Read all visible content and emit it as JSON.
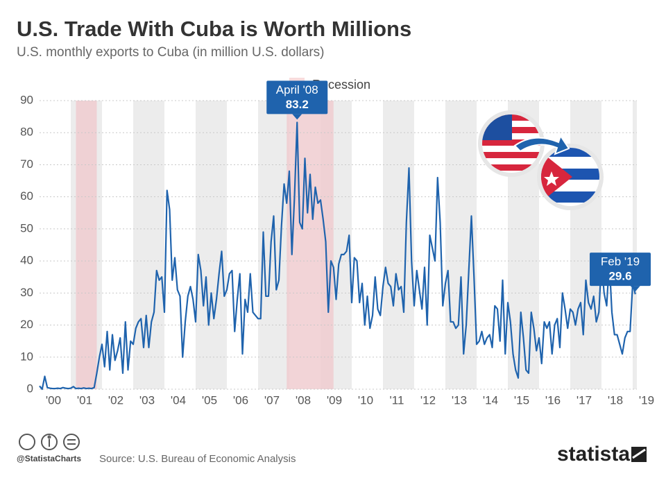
{
  "chart_data": {
    "type": "line",
    "title": "U.S. Trade With Cuba is Worth Millions",
    "subtitle": "U.S. monthly exports to Cuba (in million U.S. dollars)",
    "x": [
      "2000-01",
      "2000-02",
      "2000-03",
      "2000-04",
      "2000-05",
      "2000-06",
      "2000-07",
      "2000-08",
      "2000-09",
      "2000-10",
      "2000-11",
      "2000-12",
      "2001-01",
      "2001-02",
      "2001-03",
      "2001-04",
      "2001-05",
      "2001-06",
      "2001-07",
      "2001-08",
      "2001-09",
      "2001-10",
      "2001-11",
      "2001-12",
      "2002-01",
      "2002-02",
      "2002-03",
      "2002-04",
      "2002-05",
      "2002-06",
      "2002-07",
      "2002-08",
      "2002-09",
      "2002-10",
      "2002-11",
      "2002-12",
      "2003-01",
      "2003-02",
      "2003-03",
      "2003-04",
      "2003-05",
      "2003-06",
      "2003-07",
      "2003-08",
      "2003-09",
      "2003-10",
      "2003-11",
      "2003-12",
      "2004-01",
      "2004-02",
      "2004-03",
      "2004-04",
      "2004-05",
      "2004-06",
      "2004-07",
      "2004-08",
      "2004-09",
      "2004-10",
      "2004-11",
      "2004-12",
      "2005-01",
      "2005-02",
      "2005-03",
      "2005-04",
      "2005-05",
      "2005-06",
      "2005-07",
      "2005-08",
      "2005-09",
      "2005-10",
      "2005-11",
      "2005-12",
      "2006-01",
      "2006-02",
      "2006-03",
      "2006-04",
      "2006-05",
      "2006-06",
      "2006-07",
      "2006-08",
      "2006-09",
      "2006-10",
      "2006-11",
      "2006-12",
      "2007-01",
      "2007-02",
      "2007-03",
      "2007-04",
      "2007-05",
      "2007-06",
      "2007-07",
      "2007-08",
      "2007-09",
      "2007-10",
      "2007-11",
      "2007-12",
      "2008-01",
      "2008-02",
      "2008-03",
      "2008-04",
      "2008-05",
      "2008-06",
      "2008-07",
      "2008-08",
      "2008-09",
      "2008-10",
      "2008-11",
      "2008-12",
      "2009-01",
      "2009-02",
      "2009-03",
      "2009-04",
      "2009-05",
      "2009-06",
      "2009-07",
      "2009-08",
      "2009-09",
      "2009-10",
      "2009-11",
      "2009-12",
      "2010-01",
      "2010-02",
      "2010-03",
      "2010-04",
      "2010-05",
      "2010-06",
      "2010-07",
      "2010-08",
      "2010-09",
      "2010-10",
      "2010-11",
      "2010-12",
      "2011-01",
      "2011-02",
      "2011-03",
      "2011-04",
      "2011-05",
      "2011-06",
      "2011-07",
      "2011-08",
      "2011-09",
      "2011-10",
      "2011-11",
      "2011-12",
      "2012-01",
      "2012-02",
      "2012-03",
      "2012-04",
      "2012-05",
      "2012-06",
      "2012-07",
      "2012-08",
      "2012-09",
      "2012-10",
      "2012-11",
      "2012-12",
      "2013-01",
      "2013-02",
      "2013-03",
      "2013-04",
      "2013-05",
      "2013-06",
      "2013-07",
      "2013-08",
      "2013-09",
      "2013-10",
      "2013-11",
      "2013-12",
      "2014-01",
      "2014-02",
      "2014-03",
      "2014-04",
      "2014-05",
      "2014-06",
      "2014-07",
      "2014-08",
      "2014-09",
      "2014-10",
      "2014-11",
      "2014-12",
      "2015-01",
      "2015-02",
      "2015-03",
      "2015-04",
      "2015-05",
      "2015-06",
      "2015-07",
      "2015-08",
      "2015-09",
      "2015-10",
      "2015-11",
      "2015-12",
      "2016-01",
      "2016-02",
      "2016-03",
      "2016-04",
      "2016-05",
      "2016-06",
      "2016-07",
      "2016-08",
      "2016-09",
      "2016-10",
      "2016-11",
      "2016-12",
      "2017-01",
      "2017-02",
      "2017-03",
      "2017-04",
      "2017-05",
      "2017-06",
      "2017-07",
      "2017-08",
      "2017-09",
      "2017-10",
      "2017-11",
      "2017-12",
      "2018-01",
      "2018-02",
      "2018-03",
      "2018-04",
      "2018-05",
      "2018-06",
      "2018-07",
      "2018-08",
      "2018-09",
      "2018-10",
      "2018-11",
      "2018-12",
      "2019-01",
      "2019-02"
    ],
    "series": [
      {
        "name": "U.S. exports to Cuba",
        "color": "#1f63ad",
        "values": [
          1,
          0,
          4,
          0.5,
          0.3,
          0.2,
          0.2,
          0.3,
          0.2,
          0.5,
          0.3,
          0.2,
          0.3,
          0.8,
          0.2,
          0.3,
          0.2,
          0.4,
          0.2,
          0.3,
          0.2,
          0.5,
          5,
          10,
          14,
          7,
          18,
          6,
          17,
          9,
          12,
          16,
          5,
          21,
          6,
          15,
          14,
          19,
          21,
          22,
          13,
          23,
          13,
          21,
          24,
          37,
          34,
          35,
          24,
          62,
          56,
          34,
          41,
          31,
          29,
          10,
          21,
          29,
          32,
          28,
          21,
          42,
          37,
          26,
          35,
          20,
          30,
          22,
          28,
          36,
          43,
          29,
          31,
          36,
          37,
          18,
          28,
          36,
          11,
          28,
          24,
          36,
          24,
          23,
          22,
          22,
          49,
          29,
          29,
          46,
          54,
          31,
          34,
          51,
          64,
          58,
          68,
          42,
          60,
          83.2,
          52,
          50,
          72,
          55,
          67,
          53,
          63,
          58,
          59,
          53,
          46,
          24,
          40,
          38,
          28,
          39,
          42,
          42,
          43,
          48,
          27,
          41,
          40,
          27,
          33,
          20,
          29,
          19,
          23,
          35,
          25,
          23,
          32,
          38,
          33,
          32,
          26,
          36,
          31,
          32,
          24,
          52,
          69,
          40,
          26,
          37,
          31,
          25,
          38,
          20,
          48,
          44,
          40,
          66,
          52,
          26,
          33,
          37,
          21,
          21,
          19,
          20,
          35,
          11,
          20,
          37,
          54,
          35,
          14,
          15,
          18,
          14,
          16,
          17,
          13,
          26,
          25,
          15,
          34,
          11,
          27,
          21,
          11,
          6,
          3.5,
          24,
          16,
          6,
          5,
          24,
          19,
          12,
          16,
          8,
          21,
          19,
          21,
          11,
          20,
          22,
          13,
          30,
          25,
          19,
          25,
          24,
          20,
          25,
          27,
          17,
          34,
          27,
          25,
          29,
          21,
          24,
          40,
          30,
          26,
          40,
          24,
          17,
          17,
          14,
          11,
          16,
          18,
          18,
          33,
          29.6
        ]
      }
    ],
    "xticks": [
      {
        "value": 2000,
        "label": "'00"
      },
      {
        "value": 2001,
        "label": "'01"
      },
      {
        "value": 2002,
        "label": "'02"
      },
      {
        "value": 2003,
        "label": "'03"
      },
      {
        "value": 2004,
        "label": "'04"
      },
      {
        "value": 2005,
        "label": "'05"
      },
      {
        "value": 2006,
        "label": "'06"
      },
      {
        "value": 2007,
        "label": "'07"
      },
      {
        "value": 2008,
        "label": "'08"
      },
      {
        "value": 2009,
        "label": "'09"
      },
      {
        "value": 2010,
        "label": "'10"
      },
      {
        "value": 2011,
        "label": "'11"
      },
      {
        "value": 2012,
        "label": "'12"
      },
      {
        "value": 2013,
        "label": "'13"
      },
      {
        "value": 2014,
        "label": "'14"
      },
      {
        "value": 2015,
        "label": "'15"
      },
      {
        "value": 2016,
        "label": "'16"
      },
      {
        "value": 2017,
        "label": "'17"
      },
      {
        "value": 2018,
        "label": "'18"
      },
      {
        "value": 2019,
        "label": "'19"
      }
    ],
    "ylim": [
      0,
      90
    ],
    "yticks": [
      0,
      10,
      20,
      30,
      40,
      50,
      60,
      70,
      80,
      90
    ],
    "grid": true,
    "recession_label": "Recession",
    "recessions": [
      {
        "start": "2001-03",
        "end": "2001-11"
      },
      {
        "start": "2007-12",
        "end": "2009-06"
      }
    ],
    "annotations": [
      {
        "x": "2008-04",
        "text": "April '08"
      },
      {
        "x": "2019-02",
        "text": "Feb '19"
      }
    ],
    "handle": "@StatistaCharts",
    "source": "Source: U.S. Bureau of Economic Analysis",
    "brand": "statista"
  }
}
